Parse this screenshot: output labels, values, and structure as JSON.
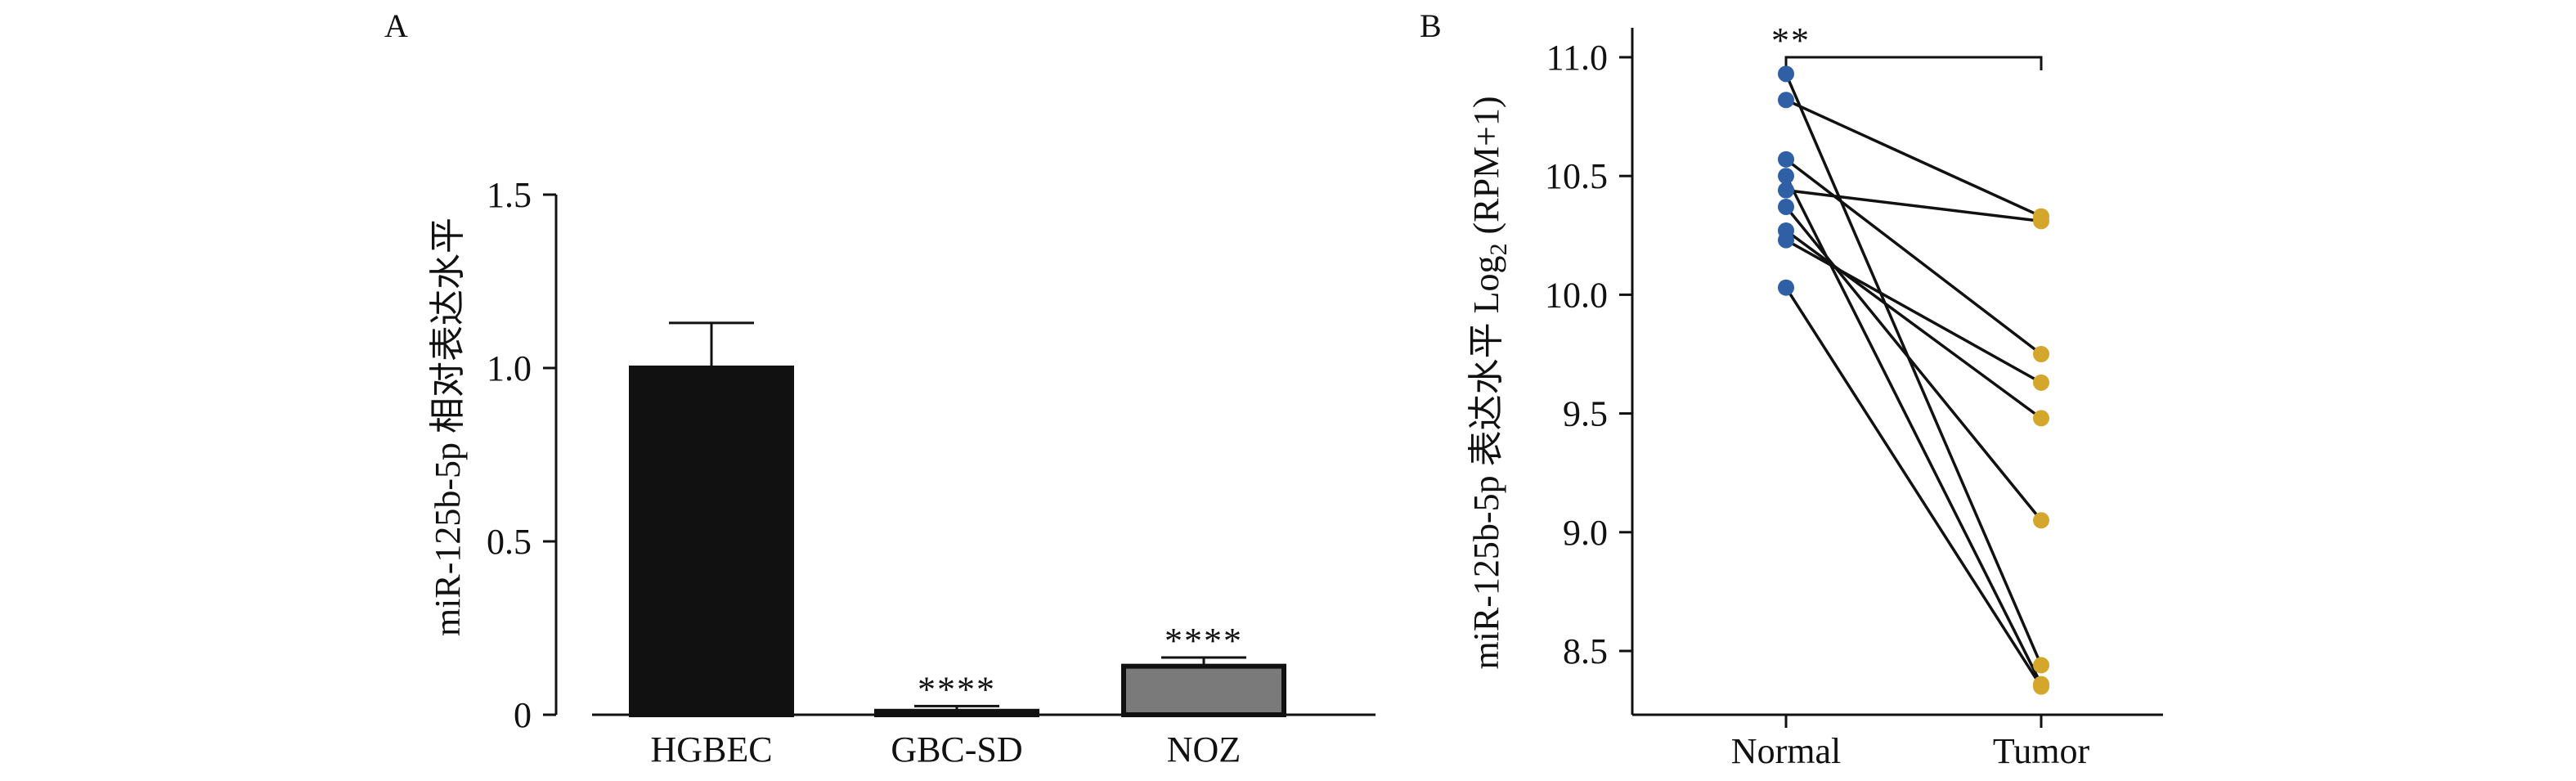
{
  "panels": [
    {
      "id": "A",
      "label": "A",
      "chart_data": {
        "type": "bar",
        "title": "",
        "xlabel": "",
        "ylabel": "miR-125b-5p 相对表达水平",
        "ylim": [
          0,
          1.5
        ],
        "yticks": [
          0,
          0.5,
          1.0,
          1.5
        ],
        "ytick_labels": [
          "0",
          "0.5",
          "1.0",
          "1.5"
        ],
        "categories": [
          "HGBEC",
          "GBC-SD",
          "NOZ"
        ],
        "values": [
          1.0,
          0.01,
          0.14
        ],
        "errors": [
          0.13,
          0.015,
          0.025
        ],
        "bar_colors": [
          "#111111",
          "#1a1a1a",
          "#7a7a7a"
        ],
        "annotations": [
          "",
          "****",
          "****"
        ],
        "grid": false
      }
    },
    {
      "id": "B",
      "label": "B",
      "chart_data": {
        "type": "line",
        "title": "",
        "xlabel": "",
        "ylabel": "miR-125b-5p 表达水平 Log",
        "ylabel_subscript": "2",
        "ylabel_suffix": " (RPM+1)",
        "ylim": [
          8.3,
          11.15
        ],
        "yticks": [
          8.5,
          9.0,
          9.5,
          10.0,
          10.5,
          11.0
        ],
        "ytick_labels": [
          "8.5",
          "9.0",
          "9.5",
          "10.0",
          "10.5",
          "11.0"
        ],
        "categories": [
          "Normal",
          "Tumor"
        ],
        "normal_color": "#2f5fa5",
        "tumor_color": "#d4a72c",
        "pairs": [
          {
            "normal": 10.93,
            "tumor": 8.44
          },
          {
            "normal": 10.82,
            "tumor": 10.33
          },
          {
            "normal": 10.57,
            "tumor": 9.75
          },
          {
            "normal": 10.5,
            "tumor": 8.36
          },
          {
            "normal": 10.44,
            "tumor": 10.31
          },
          {
            "normal": 10.37,
            "tumor": 9.05
          },
          {
            "normal": 10.27,
            "tumor": 9.48
          },
          {
            "normal": 10.23,
            "tumor": 9.63
          },
          {
            "normal": 10.03,
            "tumor": 8.35
          }
        ],
        "significance": "**",
        "grid": false
      }
    }
  ]
}
